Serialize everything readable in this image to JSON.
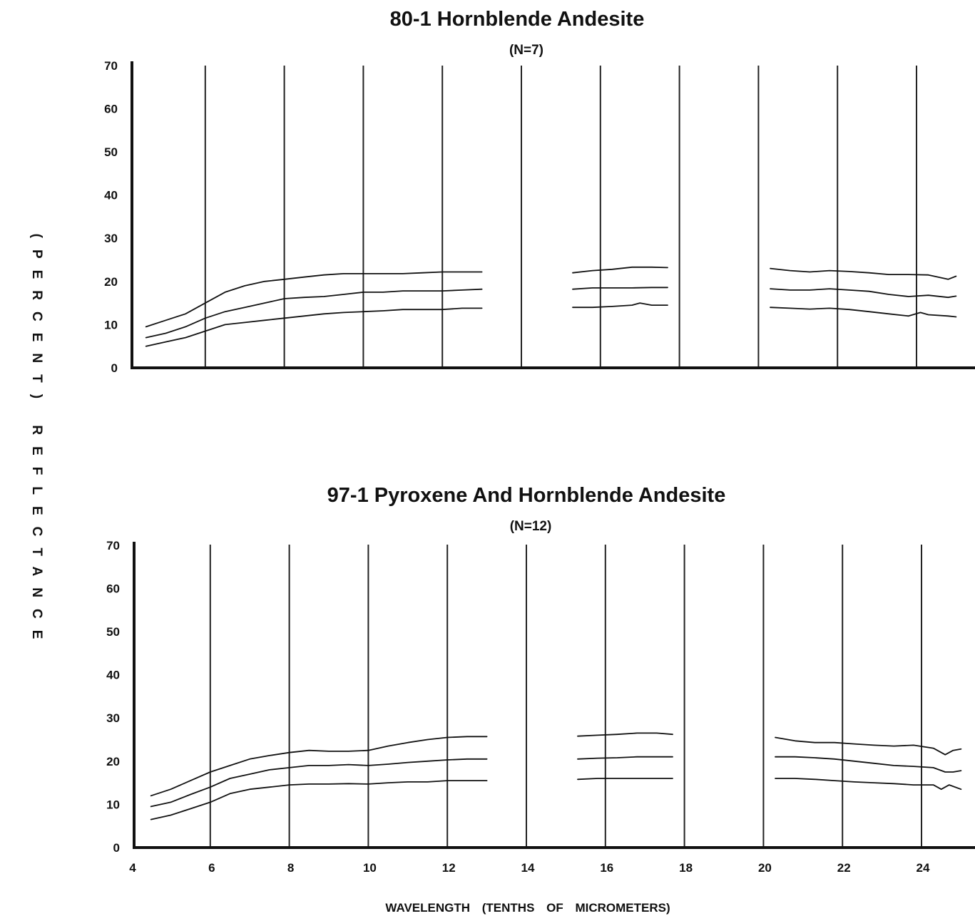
{
  "figure": {
    "ylabel": "(PERCENT) REFLECTANCE",
    "xlabel": "WAVELENGTH (TENTHS OF MICROMETERS)"
  },
  "chart_data": [
    {
      "type": "line",
      "title": "80-1 Hornblende Andesite",
      "subtitle": "(N=7)",
      "ylim": [
        0,
        70
      ],
      "xlim": [
        4,
        25
      ],
      "yticks": [
        "0",
        "10",
        "20",
        "30",
        "40",
        "50",
        "60",
        "70"
      ],
      "xticks": [],
      "grid": "vertical lines",
      "series": [
        {
          "segments": [
            {
              "x": [
                4.5,
                5.0,
                5.5,
                6.0,
                6.5,
                7.0,
                7.5,
                8.0,
                8.5,
                9.0,
                9.5,
                10.0,
                10.5,
                11.0,
                11.5,
                12.0,
                12.5,
                13.0
              ],
              "y": [
                9.5,
                11.0,
                12.5,
                15.0,
                17.5,
                19.0,
                20.0,
                20.5,
                21.0,
                21.5,
                21.8,
                21.8,
                21.8,
                21.8,
                22.0,
                22.2,
                22.2,
                22.2
              ]
            },
            {
              "x": [
                15.3,
                15.8,
                16.3,
                16.8,
                17.3,
                17.7
              ],
              "y": [
                22.0,
                22.5,
                22.8,
                23.3,
                23.3,
                23.2
              ]
            },
            {
              "x": [
                20.3,
                20.8,
                21.3,
                21.8,
                22.3,
                22.8,
                23.3,
                23.8,
                24.3,
                24.8,
                25.0
              ],
              "y": [
                23.0,
                22.5,
                22.2,
                22.5,
                22.3,
                22.0,
                21.6,
                21.6,
                21.5,
                20.5,
                21.2
              ]
            }
          ]
        },
        {
          "segments": [
            {
              "x": [
                4.5,
                5.0,
                5.5,
                6.0,
                6.5,
                7.0,
                7.5,
                8.0,
                8.5,
                9.0,
                9.5,
                10.0,
                10.5,
                11.0,
                11.5,
                12.0,
                12.5,
                13.0
              ],
              "y": [
                7.0,
                8.0,
                9.5,
                11.5,
                13.0,
                14.0,
                15.0,
                16.0,
                16.3,
                16.5,
                17.0,
                17.5,
                17.5,
                17.8,
                17.8,
                17.8,
                18.0,
                18.2
              ]
            },
            {
              "x": [
                15.3,
                15.8,
                16.3,
                16.8,
                17.3,
                17.7
              ],
              "y": [
                18.2,
                18.5,
                18.5,
                18.5,
                18.6,
                18.6
              ]
            },
            {
              "x": [
                20.3,
                20.8,
                21.3,
                21.8,
                22.3,
                22.8,
                23.3,
                23.8,
                24.3,
                24.8,
                25.0
              ],
              "y": [
                18.3,
                18.0,
                18.0,
                18.3,
                18.0,
                17.7,
                17.0,
                16.5,
                16.8,
                16.3,
                16.6
              ]
            }
          ]
        },
        {
          "segments": [
            {
              "x": [
                4.5,
                5.0,
                5.5,
                6.0,
                6.5,
                7.0,
                7.5,
                8.0,
                8.5,
                9.0,
                9.5,
                10.0,
                10.5,
                11.0,
                11.5,
                12.0,
                12.5,
                13.0
              ],
              "y": [
                5.0,
                6.0,
                7.0,
                8.5,
                10.0,
                10.5,
                11.0,
                11.5,
                12.0,
                12.5,
                12.8,
                13.0,
                13.2,
                13.5,
                13.5,
                13.5,
                13.8,
                13.8
              ]
            },
            {
              "x": [
                15.3,
                15.8,
                16.3,
                16.8,
                17.0,
                17.3,
                17.7
              ],
              "y": [
                14.0,
                14.0,
                14.2,
                14.5,
                15.0,
                14.5,
                14.5
              ]
            },
            {
              "x": [
                20.3,
                20.8,
                21.3,
                21.8,
                22.3,
                22.8,
                23.3,
                23.8,
                24.1,
                24.3,
                24.8,
                25.0
              ],
              "y": [
                14.0,
                13.8,
                13.6,
                13.8,
                13.5,
                13.0,
                12.5,
                12.0,
                12.8,
                12.3,
                12.0,
                11.8
              ]
            }
          ]
        }
      ]
    },
    {
      "type": "line",
      "title": "97-1 Pyroxene And Hornblende Andesite",
      "subtitle": "(N=12)",
      "ylim": [
        0,
        70
      ],
      "xlim": [
        4,
        25
      ],
      "yticks": [
        "0",
        "10",
        "20",
        "30",
        "40",
        "50",
        "60",
        "70"
      ],
      "xticks": [
        "4",
        "6",
        "8",
        "10",
        "12",
        "14",
        "16",
        "18",
        "20",
        "22",
        "24"
      ],
      "grid": "vertical lines",
      "series": [
        {
          "segments": [
            {
              "x": [
                4.5,
                5.0,
                5.5,
                6.0,
                6.5,
                7.0,
                7.5,
                8.0,
                8.5,
                9.0,
                9.5,
                10.0,
                10.5,
                11.0,
                11.5,
                12.0,
                12.5,
                13.0
              ],
              "y": [
                12.0,
                13.5,
                15.5,
                17.5,
                19.0,
                20.5,
                21.3,
                22.0,
                22.5,
                22.3,
                22.3,
                22.5,
                23.5,
                24.3,
                25.0,
                25.5,
                25.7,
                25.7
              ]
            },
            {
              "x": [
                15.3,
                15.8,
                16.3,
                16.8,
                17.3,
                17.7
              ],
              "y": [
                25.8,
                26.0,
                26.2,
                26.5,
                26.5,
                26.2
              ]
            },
            {
              "x": [
                20.3,
                20.8,
                21.3,
                21.8,
                22.3,
                22.8,
                23.3,
                23.8,
                24.3,
                24.6,
                24.8,
                25.0
              ],
              "y": [
                25.5,
                24.7,
                24.3,
                24.3,
                24.0,
                23.7,
                23.5,
                23.7,
                23.0,
                21.5,
                22.5,
                22.8
              ]
            }
          ]
        },
        {
          "segments": [
            {
              "x": [
                4.5,
                5.0,
                5.5,
                6.0,
                6.5,
                7.0,
                7.5,
                8.0,
                8.5,
                9.0,
                9.5,
                10.0,
                10.5,
                11.0,
                11.5,
                12.0,
                12.5,
                13.0
              ],
              "y": [
                9.5,
                10.5,
                12.3,
                14.0,
                16.0,
                17.0,
                18.0,
                18.5,
                19.0,
                19.0,
                19.2,
                19.0,
                19.3,
                19.7,
                20.0,
                20.3,
                20.5,
                20.5
              ]
            },
            {
              "x": [
                15.3,
                15.8,
                16.3,
                16.8,
                17.3,
                17.7
              ],
              "y": [
                20.5,
                20.7,
                20.8,
                21.0,
                21.0,
                21.0
              ]
            },
            {
              "x": [
                20.3,
                20.8,
                21.3,
                21.8,
                22.3,
                22.8,
                23.3,
                23.8,
                24.3,
                24.6,
                24.8,
                25.0
              ],
              "y": [
                21.0,
                21.0,
                20.8,
                20.5,
                20.0,
                19.5,
                19.0,
                18.8,
                18.5,
                17.5,
                17.5,
                17.8
              ]
            }
          ]
        },
        {
          "segments": [
            {
              "x": [
                4.5,
                5.0,
                5.5,
                6.0,
                6.5,
                7.0,
                7.5,
                8.0,
                8.5,
                9.0,
                9.5,
                10.0,
                10.5,
                11.0,
                11.5,
                12.0,
                12.5,
                13.0
              ],
              "y": [
                6.5,
                7.5,
                9.0,
                10.5,
                12.5,
                13.5,
                14.0,
                14.5,
                14.7,
                14.7,
                14.8,
                14.7,
                15.0,
                15.2,
                15.2,
                15.5,
                15.5,
                15.5
              ]
            },
            {
              "x": [
                15.3,
                15.8,
                16.3,
                16.8,
                17.3,
                17.7
              ],
              "y": [
                15.8,
                16.0,
                16.0,
                16.0,
                16.0,
                16.0
              ]
            },
            {
              "x": [
                20.3,
                20.8,
                21.3,
                21.8,
                22.3,
                22.8,
                23.3,
                23.8,
                24.3,
                24.5,
                24.7,
                25.0
              ],
              "y": [
                16.0,
                16.0,
                15.8,
                15.5,
                15.2,
                15.0,
                14.8,
                14.5,
                14.5,
                13.5,
                14.5,
                13.5
              ]
            }
          ]
        }
      ]
    }
  ]
}
